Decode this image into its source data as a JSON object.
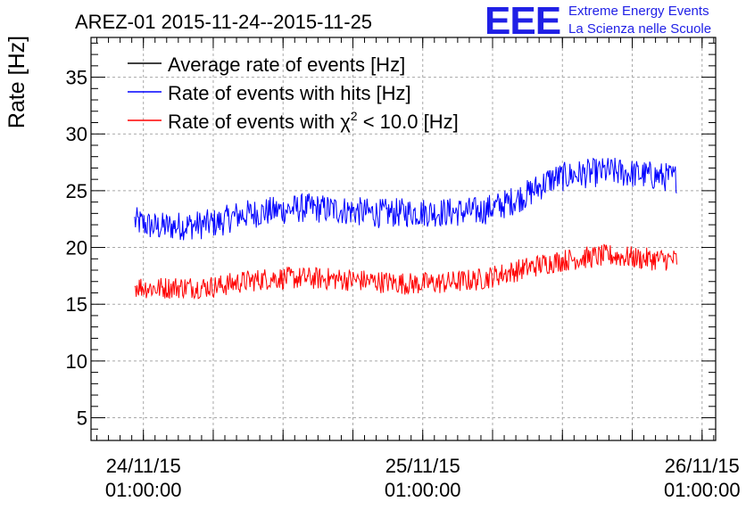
{
  "logo": {
    "letters": "EEE",
    "line1": "Extreme Energy Events",
    "line2": "La Scienza nelle Scuole",
    "color": "#1f1fe6"
  },
  "chart_data": {
    "type": "line",
    "title": "AREZ-01 2015-11-24--2015-11-25",
    "ylabel": "Rate [Hz]",
    "xlabel": "",
    "ylim": [
      3,
      38.5
    ],
    "y_ticks": [
      5,
      10,
      15,
      20,
      25,
      30,
      35
    ],
    "x_range": [
      "2015-11-23 20:30:00",
      "2015-11-26 02:10:00"
    ],
    "x_ticks": [
      {
        "date": "24/11/15",
        "time": "01:00:00",
        "t": "2015-11-24 01:00:00"
      },
      {
        "date": "25/11/15",
        "time": "01:00:00",
        "t": "2015-11-25 01:00:00"
      },
      {
        "date": "26/11/15",
        "time": "01:00:00",
        "t": "2015-11-26 01:00:00"
      }
    ],
    "grid": true,
    "legend_position": "top-left",
    "legend": {
      "average_label": "Average rate of events [Hz]",
      "hits_label": "Rate of events with hits [Hz]",
      "chi2_prefix": "Rate of events with ",
      "chi2_symbol": "χ",
      "chi2_sup": "2",
      "chi2_suffix": " < 10.0 [Hz]"
    },
    "series": [
      {
        "name": "Average rate of events [Hz]",
        "color": "#000000",
        "x": [],
        "y": []
      },
      {
        "name": "Rate of events with hits [Hz]",
        "color": "#0000ff",
        "noise_amplitude": 1.3,
        "x": [
          "2015-11-24 00:15:00",
          "2015-11-24 02:00:00",
          "2015-11-24 04:00:00",
          "2015-11-24 06:00:00",
          "2015-11-24 07:30:00",
          "2015-11-24 09:00:00",
          "2015-11-24 12:00:00",
          "2015-11-24 15:00:00",
          "2015-11-24 18:00:00",
          "2015-11-24 21:00:00",
          "2015-11-25 00:00:00",
          "2015-11-25 03:00:00",
          "2015-11-25 06:00:00",
          "2015-11-25 08:00:00",
          "2015-11-25 10:00:00",
          "2015-11-25 12:00:00",
          "2015-11-25 14:00:00",
          "2015-11-25 17:00:00",
          "2015-11-25 20:00:00",
          "2015-11-25 22:50:00"
        ],
        "y": [
          22.3,
          21.8,
          21.9,
          22.0,
          22.2,
          22.8,
          23.2,
          23.5,
          23.3,
          23.0,
          23.1,
          23.1,
          23.2,
          23.8,
          24.7,
          26.0,
          26.4,
          26.7,
          26.4,
          26.1
        ]
      },
      {
        "name": "Rate of events with χ2 < 10.0 [Hz]",
        "color": "#ff0000",
        "noise_amplitude": 1.0,
        "x": [
          "2015-11-24 00:15:00",
          "2015-11-24 02:00:00",
          "2015-11-24 04:00:00",
          "2015-11-24 06:00:00",
          "2015-11-24 07:30:00",
          "2015-11-24 09:00:00",
          "2015-11-24 12:00:00",
          "2015-11-24 15:00:00",
          "2015-11-24 18:00:00",
          "2015-11-24 21:00:00",
          "2015-11-25 00:00:00",
          "2015-11-25 03:00:00",
          "2015-11-25 06:00:00",
          "2015-11-25 08:00:00",
          "2015-11-25 10:00:00",
          "2015-11-25 12:00:00",
          "2015-11-25 14:00:00",
          "2015-11-25 17:00:00",
          "2015-11-25 20:00:00",
          "2015-11-25 22:50:00"
        ],
        "y": [
          16.6,
          16.4,
          16.5,
          16.5,
          16.6,
          16.9,
          17.3,
          17.3,
          17.2,
          17.0,
          16.8,
          16.9,
          17.2,
          17.7,
          18.2,
          18.7,
          19.0,
          19.3,
          19.0,
          18.9
        ]
      }
    ]
  }
}
